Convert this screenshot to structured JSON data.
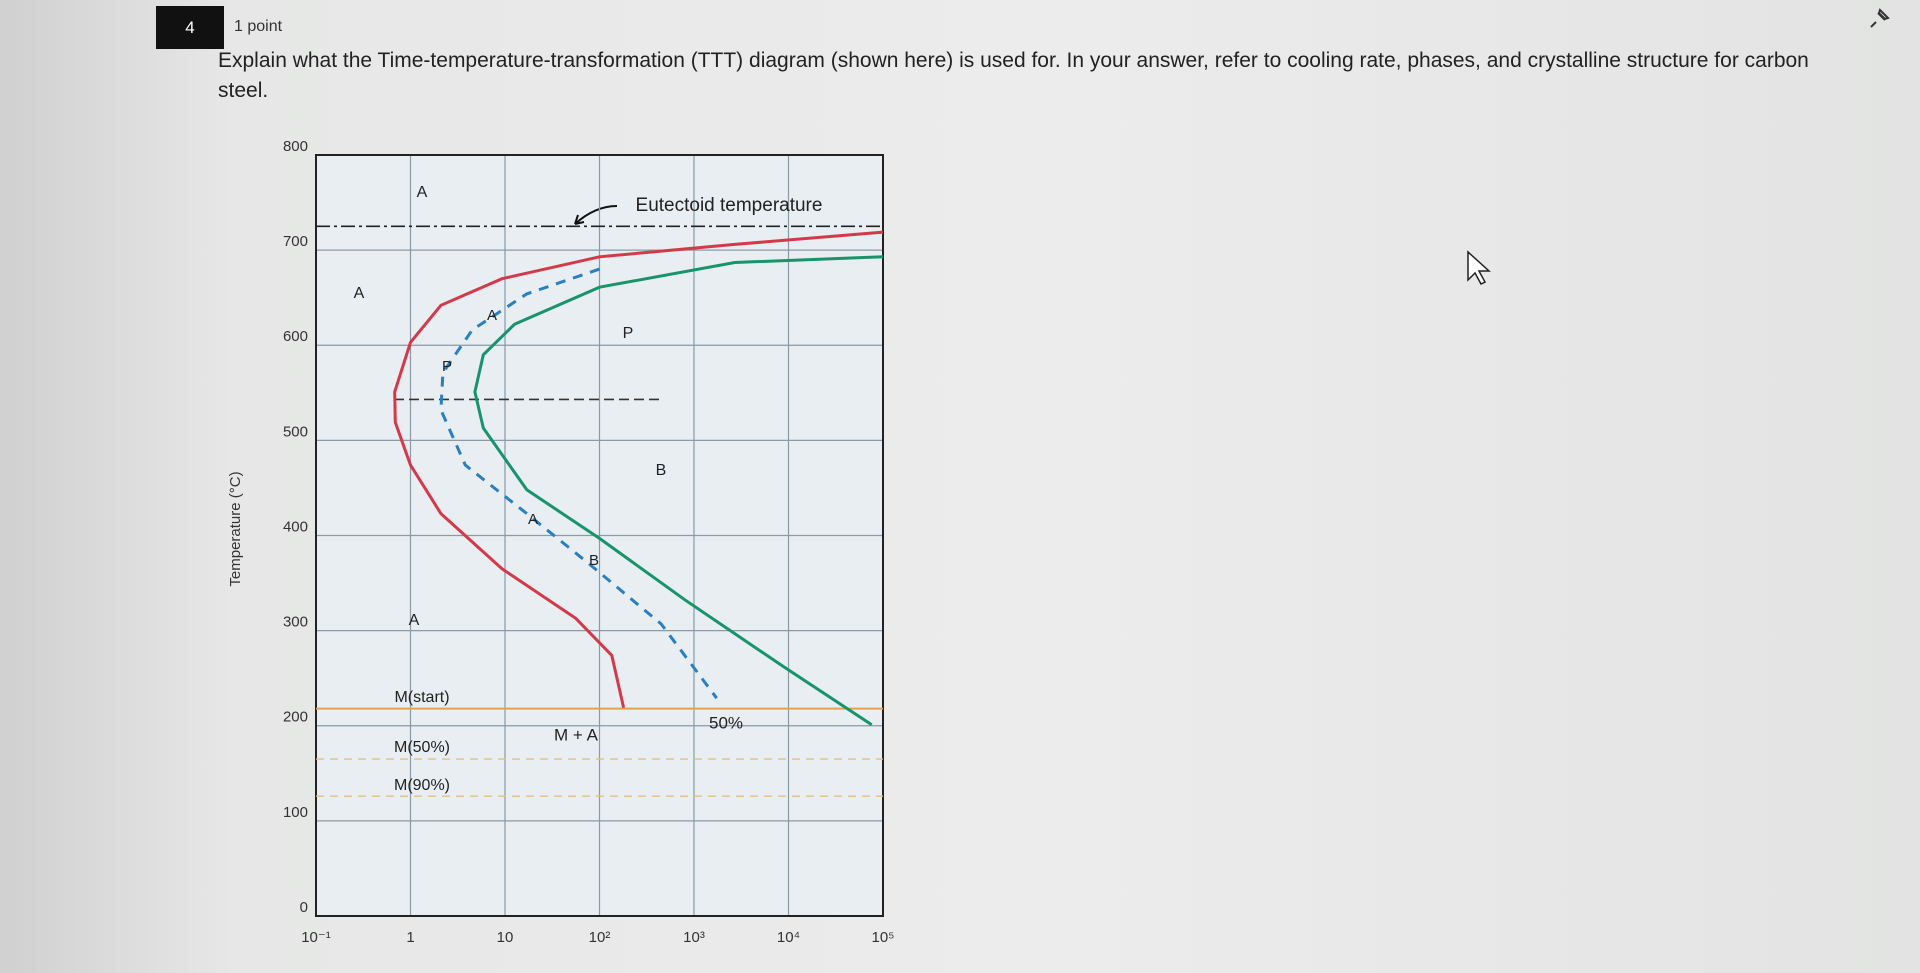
{
  "question": {
    "number": "4",
    "points": "1 point",
    "text": "Explain what the Time-temperature-transformation (TTT) diagram (shown here) is used for. In your answer, refer to cooling rate, phases, and crystalline structure for carbon steel."
  },
  "diagram": {
    "type": "line",
    "y_label": "Temperature (°C)",
    "log_x": true,
    "xlim": [
      0.1,
      100000
    ],
    "xticks": [
      {
        "value": 0.1,
        "label": "10⁻¹"
      },
      1,
      10,
      {
        "value": 100,
        "label": "10²"
      },
      {
        "value": 1000,
        "label": "10³"
      },
      {
        "value": 10000,
        "label": "10⁴"
      },
      {
        "value": 100000,
        "label": "10⁵"
      }
    ],
    "ylim": [
      0,
      800
    ],
    "yticks": [
      0,
      100,
      200,
      300,
      400,
      500,
      600,
      700,
      800
    ],
    "grid": true,
    "reference_lines": [
      725,
      543,
      218,
      165,
      126
    ],
    "series": [
      {
        "color": "#d23a4a",
        "x": [
          100000,
          2700,
          100,
          9.3,
          2.1,
          1,
          0.68,
          0.69,
          1,
          2.1,
          9.3,
          56,
          135,
          180
        ],
        "values": [
          719,
          706,
          693,
          670,
          642,
          603,
          551,
          519,
          474,
          423,
          365,
          313,
          274,
          219
        ]
      },
      {
        "color": "#17946a",
        "x": [
          100000,
          2700,
          100,
          12.6,
          5.9,
          4.8,
          5.9,
          17,
          100,
          810,
          8900,
          76000
        ],
        "values": [
          693,
          687,
          661,
          622,
          590,
          551,
          513,
          448,
          397,
          332,
          262,
          201
        ]
      },
      {
        "color": "#2a7fc0",
        "x": [
          100,
          17,
          4.5,
          2.2,
          2.1,
          3.8,
          17,
          76,
          450,
          1740
        ],
        "values": [
          680,
          654,
          616,
          571,
          532,
          474,
          423,
          371,
          307,
          229
        ]
      }
    ],
    "annotations": [
      "A",
      "Eutectoid temperature",
      "A",
      "A",
      "P",
      "P",
      "B",
      "A",
      "B",
      "A",
      "M(start)",
      "M + A",
      "50%",
      "M(50%)",
      "M(90%)"
    ]
  }
}
